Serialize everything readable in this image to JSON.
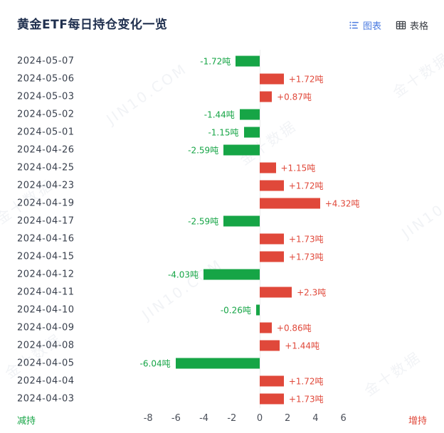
{
  "header": {
    "title": "黄金ETF每日持仓变化一览",
    "tabs": [
      {
        "label": "图表",
        "active": true
      },
      {
        "label": "表格",
        "active": false
      }
    ]
  },
  "watermark": {
    "en": "JIN10.COM",
    "cn": "金十数据"
  },
  "axis": {
    "left_label": "减持",
    "right_label": "增持"
  },
  "colors": {
    "positive": "#e0483a",
    "negative": "#16a546",
    "title": "#1f2f4e",
    "tab_active": "#4b7be0",
    "tab_inactive": "#3c4046",
    "date_text": "#39404d",
    "axis_text": "#4a4f59"
  },
  "chart_data": {
    "type": "bar",
    "orientation": "horizontal",
    "title": "黄金ETF每日持仓变化一览",
    "unit": "吨",
    "categories": [
      "2024-05-07",
      "2024-05-06",
      "2024-05-03",
      "2024-05-02",
      "2024-05-01",
      "2024-04-26",
      "2024-04-25",
      "2024-04-23",
      "2024-04-19",
      "2024-04-17",
      "2024-04-16",
      "2024-04-15",
      "2024-04-12",
      "2024-04-11",
      "2024-04-10",
      "2024-04-09",
      "2024-04-08",
      "2024-04-05",
      "2024-04-04",
      "2024-04-03"
    ],
    "values": [
      -1.72,
      1.72,
      0.87,
      -1.44,
      -1.15,
      -2.59,
      1.15,
      1.72,
      4.32,
      -2.59,
      1.73,
      1.73,
      -4.03,
      2.3,
      -0.26,
      0.86,
      1.44,
      -6.04,
      1.72,
      1.73
    ],
    "labels": [
      "-1.72吨",
      "+1.72吨",
      "+0.87吨",
      "-1.44吨",
      "-1.15吨",
      "-2.59吨",
      "+1.15吨",
      "+1.72吨",
      "+4.32吨",
      "-2.59吨",
      "+1.73吨",
      "+1.73吨",
      "-4.03吨",
      "+2.3吨",
      "-0.26吨",
      "+0.86吨",
      "+1.44吨",
      "-6.04吨",
      "+1.72吨",
      "+1.73吨"
    ],
    "x_ticks": [
      -8,
      -6,
      -4,
      -2,
      0,
      2,
      4,
      6
    ],
    "xlim": [
      -9.5,
      7.5
    ],
    "positive_meaning": "增持",
    "negative_meaning": "减持",
    "grid": false,
    "legend": "none"
  }
}
